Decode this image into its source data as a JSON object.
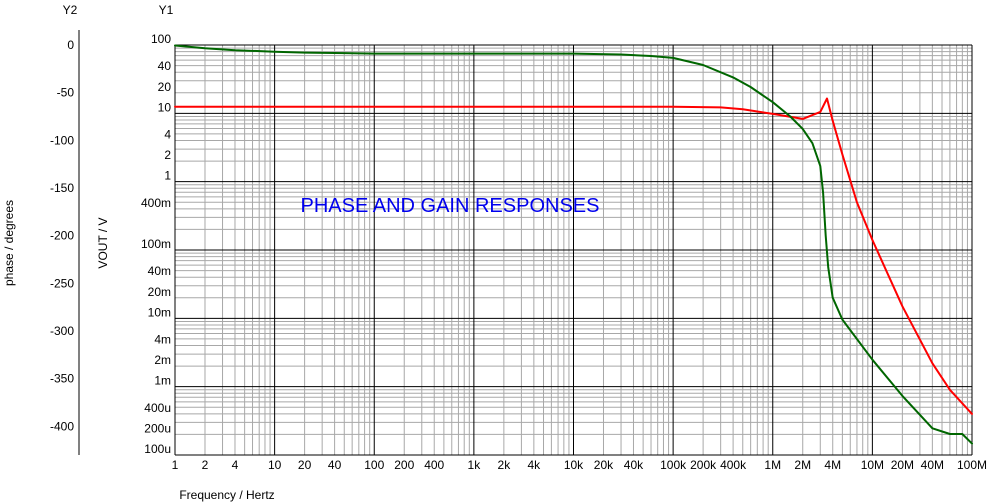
{
  "chart_data": {
    "type": "line",
    "title": "PHASE AND GAIN RESPONSES",
    "xlabel": "Frequency / Hertz",
    "x_scale": "log",
    "xlim": [
      1,
      100000000
    ],
    "x_tick_labels": [
      "1",
      "2",
      "4",
      "10",
      "20",
      "40",
      "100",
      "200",
      "400",
      "1k",
      "2k",
      "4k",
      "10k",
      "20k",
      "40k",
      "100k",
      "200k",
      "400k",
      "1M",
      "2M",
      "4M",
      "10M",
      "20M",
      "40M",
      "100M"
    ],
    "y1": {
      "axis_name": "Y1",
      "label": "VOUT / V",
      "scale": "log",
      "ylim": [
        0.0001,
        100
      ],
      "tick_labels": [
        "100",
        "40",
        "20",
        "10",
        "4",
        "2",
        "1",
        "400m",
        "100m",
        "40m",
        "20m",
        "10m",
        "4m",
        "2m",
        "1m",
        "400u",
        "200u",
        "100u"
      ]
    },
    "y2": {
      "axis_name": "Y2",
      "label": "phase / degrees",
      "scale": "linear",
      "ylim": [
        -430,
        0
      ],
      "tick_labels": [
        "0",
        "-50",
        "-100",
        "-150",
        "-200",
        "-250",
        "-300",
        "-350",
        "-400"
      ]
    },
    "grid": true,
    "series": [
      {
        "axis": "y1",
        "color": "#ff0000",
        "x": [
          1,
          100000,
          300000,
          500000,
          1000000,
          2000000,
          3000000,
          3500000,
          4000000,
          5000000,
          7000000,
          10000000,
          20000000,
          40000000,
          60000000,
          100000000
        ],
        "y": [
          12.5,
          12.5,
          12.2,
          11.5,
          9.8,
          8.3,
          10.5,
          16.5,
          7.8,
          2.5,
          0.5,
          0.14,
          0.015,
          0.0022,
          0.0009,
          0.0004
        ]
      },
      {
        "axis": "y2",
        "color": "#006600",
        "x": [
          1,
          2,
          4,
          10,
          20,
          50,
          100,
          1000,
          10000,
          30000,
          60000,
          100000,
          200000,
          400000,
          600000,
          1000000,
          1500000,
          2000000,
          2500000,
          3000000,
          3200000,
          3400000,
          3600000,
          4000000,
          5000000,
          10000000,
          20000000,
          40000000,
          60000000,
          80000000,
          100000000
        ],
        "y": [
          -0.5,
          -3.5,
          -5.5,
          -7,
          -8,
          -8.5,
          -9,
          -9,
          -9,
          -10,
          -11.5,
          -13.5,
          -21,
          -34,
          -44,
          -60,
          -75,
          -88,
          -103,
          -127,
          -155,
          -200,
          -233,
          -265,
          -288,
          -330,
          -368,
          -402,
          -408,
          -408,
          -418
        ]
      }
    ]
  }
}
